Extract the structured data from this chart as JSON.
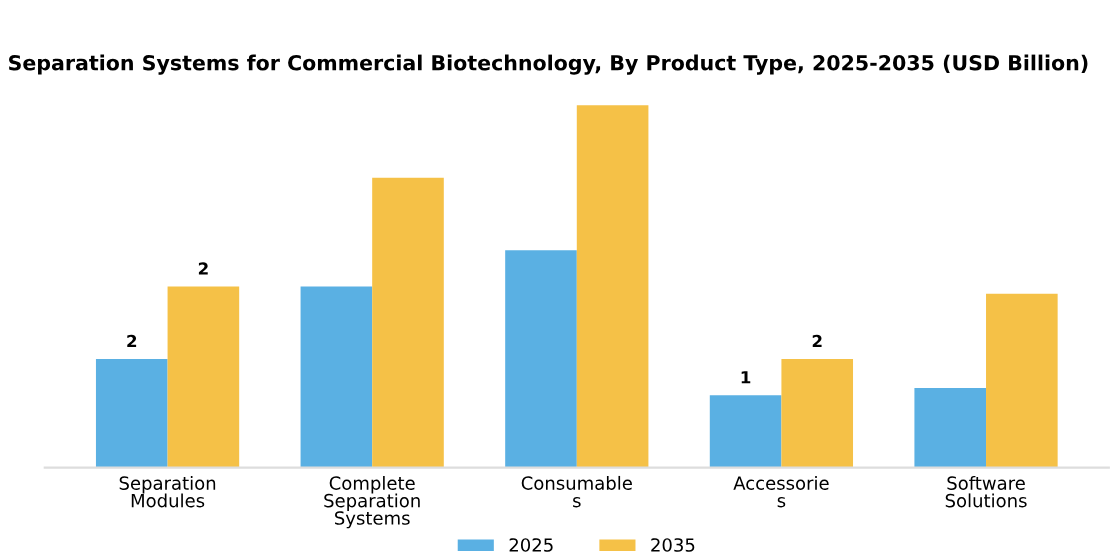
{
  "chart_data": {
    "type": "bar",
    "title": "Separation Systems for Commercial Biotechnology, By Product Type, 2025-2035 (USD Billion)",
    "ylim": [
      0,
      5.1
    ],
    "tick_labels": "x",
    "categories": [
      "Separation\nModules",
      "Complete\nSeparation\nSystems",
      "Consumable\ns",
      "Accessorie\ns",
      "Software\nSolutions"
    ],
    "series": [
      {
        "name": "2025",
        "color": "#5ab0e3",
        "values": [
          1.5,
          2.5,
          3.0,
          1.0,
          1.1
        ],
        "value_labels": [
          "2",
          null,
          null,
          "1",
          null
        ]
      },
      {
        "name": "2035",
        "color": "#f5c147",
        "values": [
          2.5,
          4.0,
          5.0,
          1.5,
          2.4
        ],
        "value_labels": [
          "2",
          null,
          null,
          "2",
          null
        ]
      }
    ],
    "legend": "bottom",
    "grid": false
  }
}
